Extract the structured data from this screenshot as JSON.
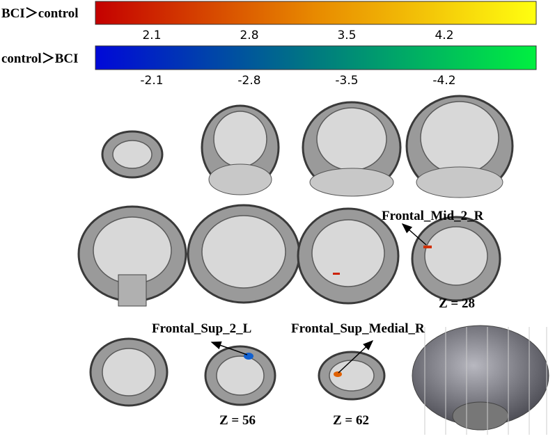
{
  "colorbars": [
    {
      "label": "BCI＞control",
      "ticks": [
        "2.1",
        "2.8",
        "3.5",
        "4.2"
      ]
    },
    {
      "label": "control＞BCI",
      "ticks": [
        "-2.1",
        "-2.8",
        "-3.5",
        "-4.2"
      ]
    }
  ],
  "annotations": [
    "Frontal_Mid_2_R",
    "Frontal_Sup_2_L",
    "Frontal_Sup_Medial_R"
  ],
  "slice_labels": [
    "Z = 28",
    "Z = 56",
    "Z = 62"
  ]
}
